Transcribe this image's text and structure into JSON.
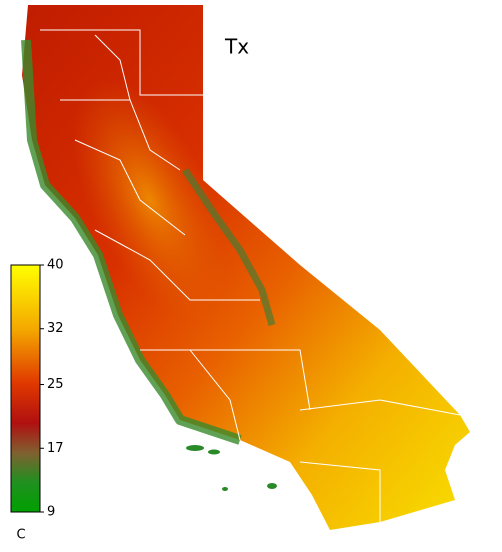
{
  "title": "Tx",
  "colorbar": {
    "range": [
      9,
      40
    ],
    "ticks": [
      40,
      32,
      25,
      17,
      9
    ],
    "unit": "C"
  }
}
